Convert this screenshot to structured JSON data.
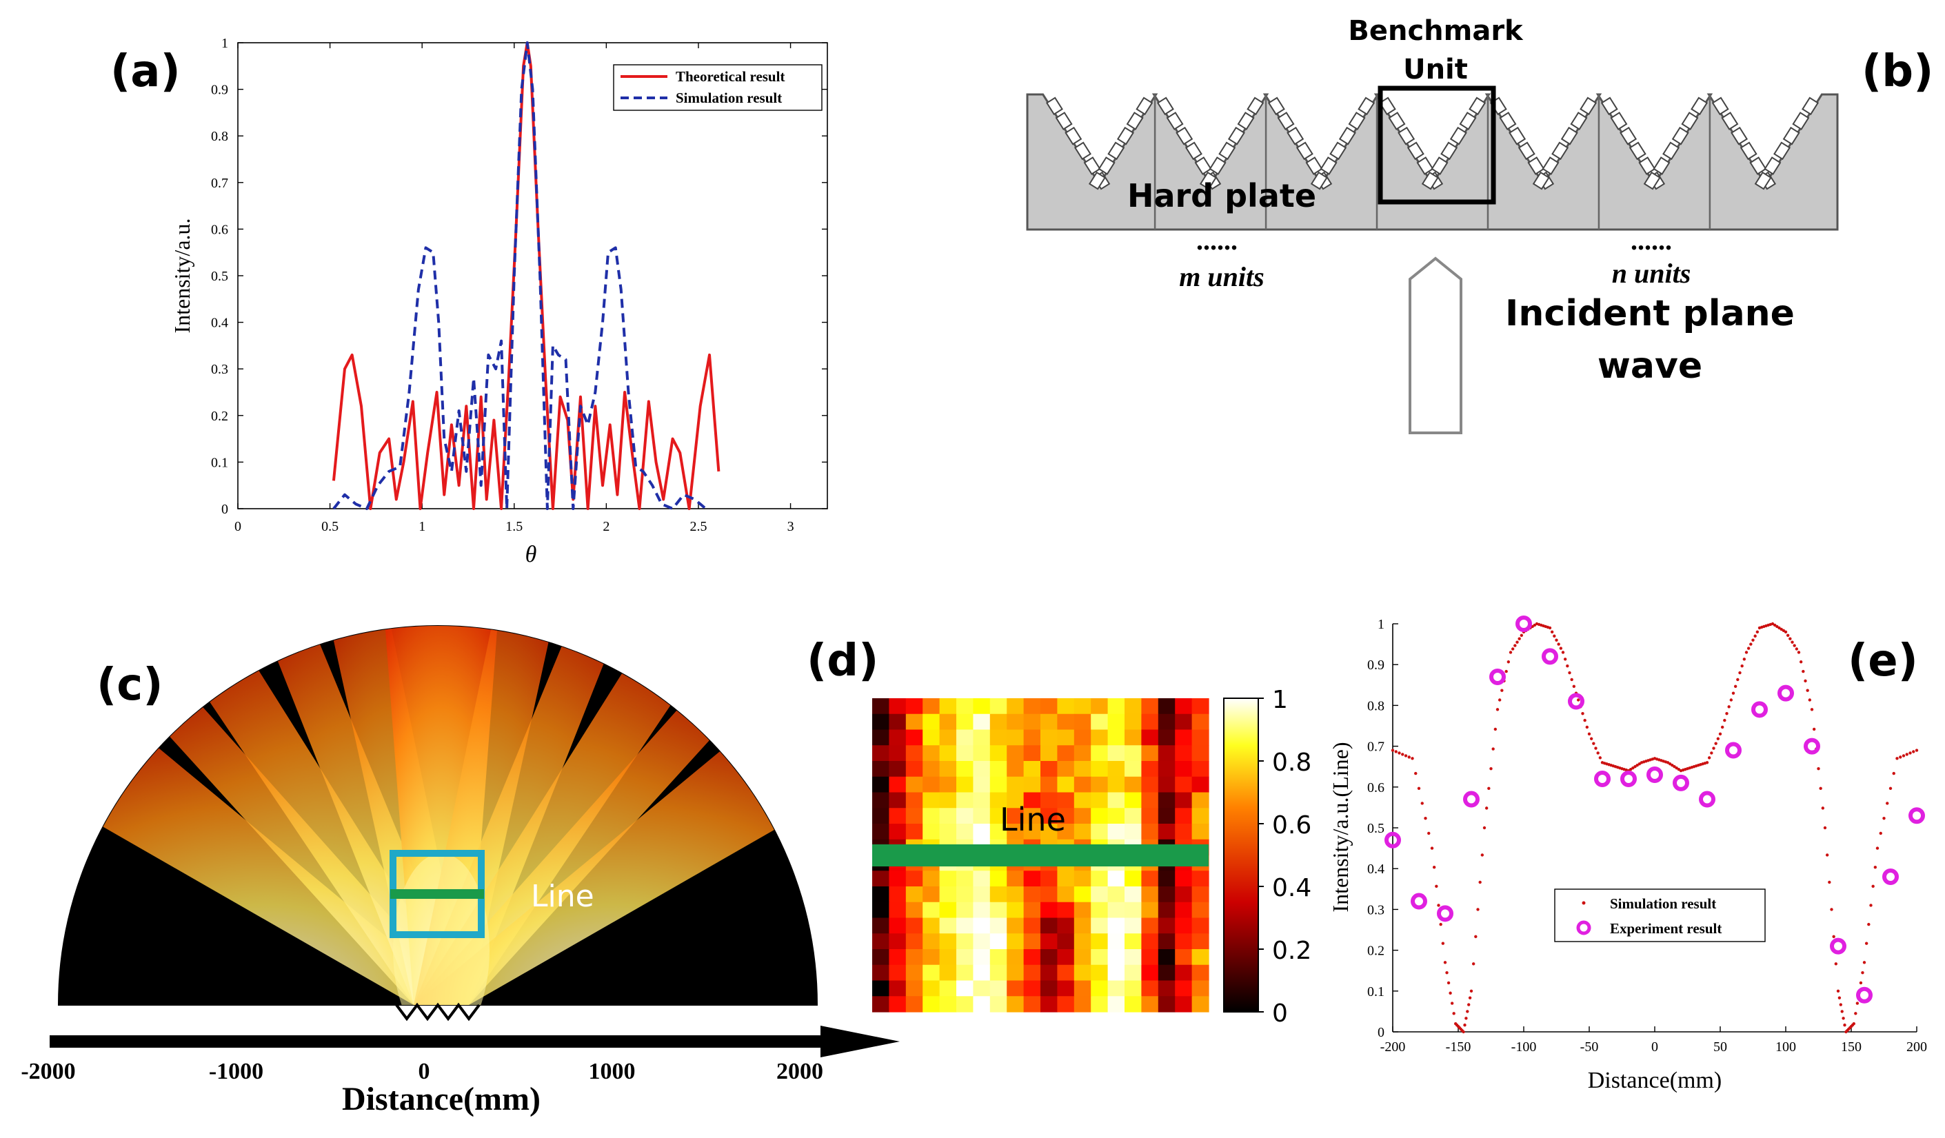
{
  "labels": {
    "a": "(a)",
    "b": "(b)",
    "c": "(c)",
    "d": "(d)",
    "e": "(e)"
  },
  "colors": {
    "theory": "#e41a1c",
    "sim": "#1f2fa8",
    "exp": "#e020e0",
    "simDot": "#cc1111",
    "green": "#1a9a4a",
    "cyan": "#1fa8c8",
    "plate": "#c8c8c8"
  },
  "chart_data": [
    {
      "id": "a",
      "type": "line",
      "title": "",
      "xlabel": "θ",
      "ylabel": "Intensity/a.u.",
      "xlim": [
        0,
        3.2
      ],
      "ylim": [
        0,
        1
      ],
      "xticks": [
        0,
        0.5,
        1,
        1.5,
        2,
        2.5,
        3
      ],
      "yticks": [
        0,
        0.1,
        0.2,
        0.3,
        0.4,
        0.5,
        0.6,
        0.7,
        0.8,
        0.9,
        1
      ],
      "legend": {
        "position": "top-right",
        "entries": [
          "Theoretical result",
          "Simulation result"
        ]
      },
      "series": [
        {
          "name": "Theoretical result",
          "x": [
            0.52,
            0.58,
            0.62,
            0.67,
            0.72,
            0.77,
            0.82,
            0.86,
            0.9,
            0.95,
            0.99,
            1.03,
            1.08,
            1.12,
            1.16,
            1.2,
            1.24,
            1.28,
            1.32,
            1.35,
            1.39,
            1.43,
            1.47,
            1.51,
            1.55,
            1.571,
            1.59,
            1.63,
            1.67,
            1.71,
            1.75,
            1.79,
            1.82,
            1.86,
            1.9,
            1.94,
            1.98,
            2.02,
            2.06,
            2.1,
            2.14,
            2.18,
            2.23,
            2.27,
            2.31,
            2.36,
            2.4,
            2.45,
            2.51,
            2.56,
            2.61
          ],
          "y": [
            0.06,
            0.3,
            0.33,
            0.22,
            0.0,
            0.12,
            0.15,
            0.02,
            0.1,
            0.23,
            0.0,
            0.12,
            0.25,
            0.03,
            0.18,
            0.05,
            0.22,
            0.0,
            0.24,
            0.02,
            0.19,
            0.0,
            0.28,
            0.6,
            0.95,
            1.0,
            0.95,
            0.6,
            0.28,
            0.0,
            0.24,
            0.19,
            0.02,
            0.24,
            0.0,
            0.22,
            0.05,
            0.18,
            0.03,
            0.25,
            0.12,
            0.0,
            0.23,
            0.1,
            0.02,
            0.15,
            0.12,
            0.0,
            0.22,
            0.33,
            0.08
          ]
        },
        {
          "name": "Simulation result",
          "x": [
            0.52,
            0.58,
            0.64,
            0.7,
            0.76,
            0.82,
            0.88,
            0.93,
            0.98,
            1.02,
            1.06,
            1.09,
            1.12,
            1.16,
            1.2,
            1.24,
            1.28,
            1.32,
            1.36,
            1.4,
            1.43,
            1.46,
            1.5,
            1.54,
            1.571,
            1.6,
            1.64,
            1.68,
            1.71,
            1.74,
            1.78,
            1.82,
            1.86,
            1.9,
            1.94,
            1.98,
            2.01,
            2.05,
            2.08,
            2.12,
            2.16,
            2.2,
            2.25,
            2.3,
            2.36,
            2.42,
            2.48,
            2.54
          ],
          "y": [
            0.0,
            0.03,
            0.01,
            0.0,
            0.05,
            0.08,
            0.09,
            0.25,
            0.47,
            0.56,
            0.55,
            0.4,
            0.15,
            0.08,
            0.21,
            0.08,
            0.28,
            0.05,
            0.33,
            0.3,
            0.36,
            0.0,
            0.5,
            0.9,
            1.0,
            0.9,
            0.5,
            0.0,
            0.35,
            0.33,
            0.32,
            0.0,
            0.22,
            0.18,
            0.25,
            0.4,
            0.55,
            0.56,
            0.47,
            0.25,
            0.09,
            0.08,
            0.05,
            0.01,
            0.0,
            0.03,
            0.02,
            0.0
          ]
        }
      ]
    },
    {
      "id": "c",
      "type": "heatmap",
      "xlabel": "Distance(mm)",
      "xticks": [
        -2000,
        -1000,
        0,
        1000,
        2000
      ],
      "annotation": "Line"
    },
    {
      "id": "d",
      "type": "heatmap",
      "annotation": "Line",
      "colorbar_ticks": [
        1,
        0.8,
        0.6,
        0.4,
        0.2,
        0
      ]
    },
    {
      "id": "e",
      "type": "scatter",
      "xlabel": "Distance(mm)",
      "ylabel": "Intensity/a.u.(Line)",
      "xlim": [
        -200,
        200
      ],
      "ylim": [
        0,
        1
      ],
      "xticks": [
        -200,
        -150,
        -100,
        -50,
        0,
        50,
        100,
        150,
        200
      ],
      "yticks": [
        0,
        0.1,
        0.2,
        0.3,
        0.4,
        0.5,
        0.6,
        0.7,
        0.8,
        0.9,
        1
      ],
      "legend": {
        "position": "center-bottom",
        "entries": [
          "Simulation result",
          "Experiment result"
        ]
      },
      "series": [
        {
          "name": "Experiment result",
          "x": [
            -200,
            -180,
            -160,
            -140,
            -120,
            -100,
            -80,
            -60,
            -40,
            -20,
            0,
            20,
            40,
            60,
            80,
            100,
            120,
            140,
            160,
            180,
            200
          ],
          "y": [
            0.47,
            0.32,
            0.29,
            0.57,
            0.87,
            1.0,
            0.92,
            0.81,
            0.62,
            0.62,
            0.63,
            0.61,
            0.57,
            0.69,
            0.79,
            0.83,
            0.7,
            0.21,
            0.09,
            0.38,
            0.53
          ]
        },
        {
          "name": "Simulation result",
          "x": [
            -200,
            -185,
            -170,
            -160,
            -152,
            -146,
            -140,
            -130,
            -120,
            -110,
            -100,
            -90,
            -80,
            -70,
            -60,
            -50,
            -40,
            -30,
            -20,
            -10,
            0,
            10,
            20,
            30,
            40,
            50,
            60,
            70,
            80,
            90,
            100,
            110,
            120,
            130,
            140,
            146,
            152,
            160,
            170,
            185,
            200
          ],
          "y": [
            0.69,
            0.67,
            0.45,
            0.17,
            0.02,
            0.0,
            0.1,
            0.5,
            0.79,
            0.93,
            0.98,
            1.0,
            0.99,
            0.93,
            0.83,
            0.73,
            0.66,
            0.65,
            0.64,
            0.66,
            0.67,
            0.66,
            0.64,
            0.65,
            0.66,
            0.73,
            0.83,
            0.93,
            0.99,
            1.0,
            0.98,
            0.93,
            0.79,
            0.5,
            0.1,
            0.0,
            0.02,
            0.17,
            0.45,
            0.67,
            0.69
          ]
        }
      ]
    }
  ],
  "panel_b": {
    "benchmark": [
      "Benchmark",
      "Unit"
    ],
    "hard_plate": "Hard plate",
    "m_units": "m units",
    "n_units": "n units",
    "dots": "......",
    "incident": [
      "Incident plane",
      "wave"
    ]
  }
}
